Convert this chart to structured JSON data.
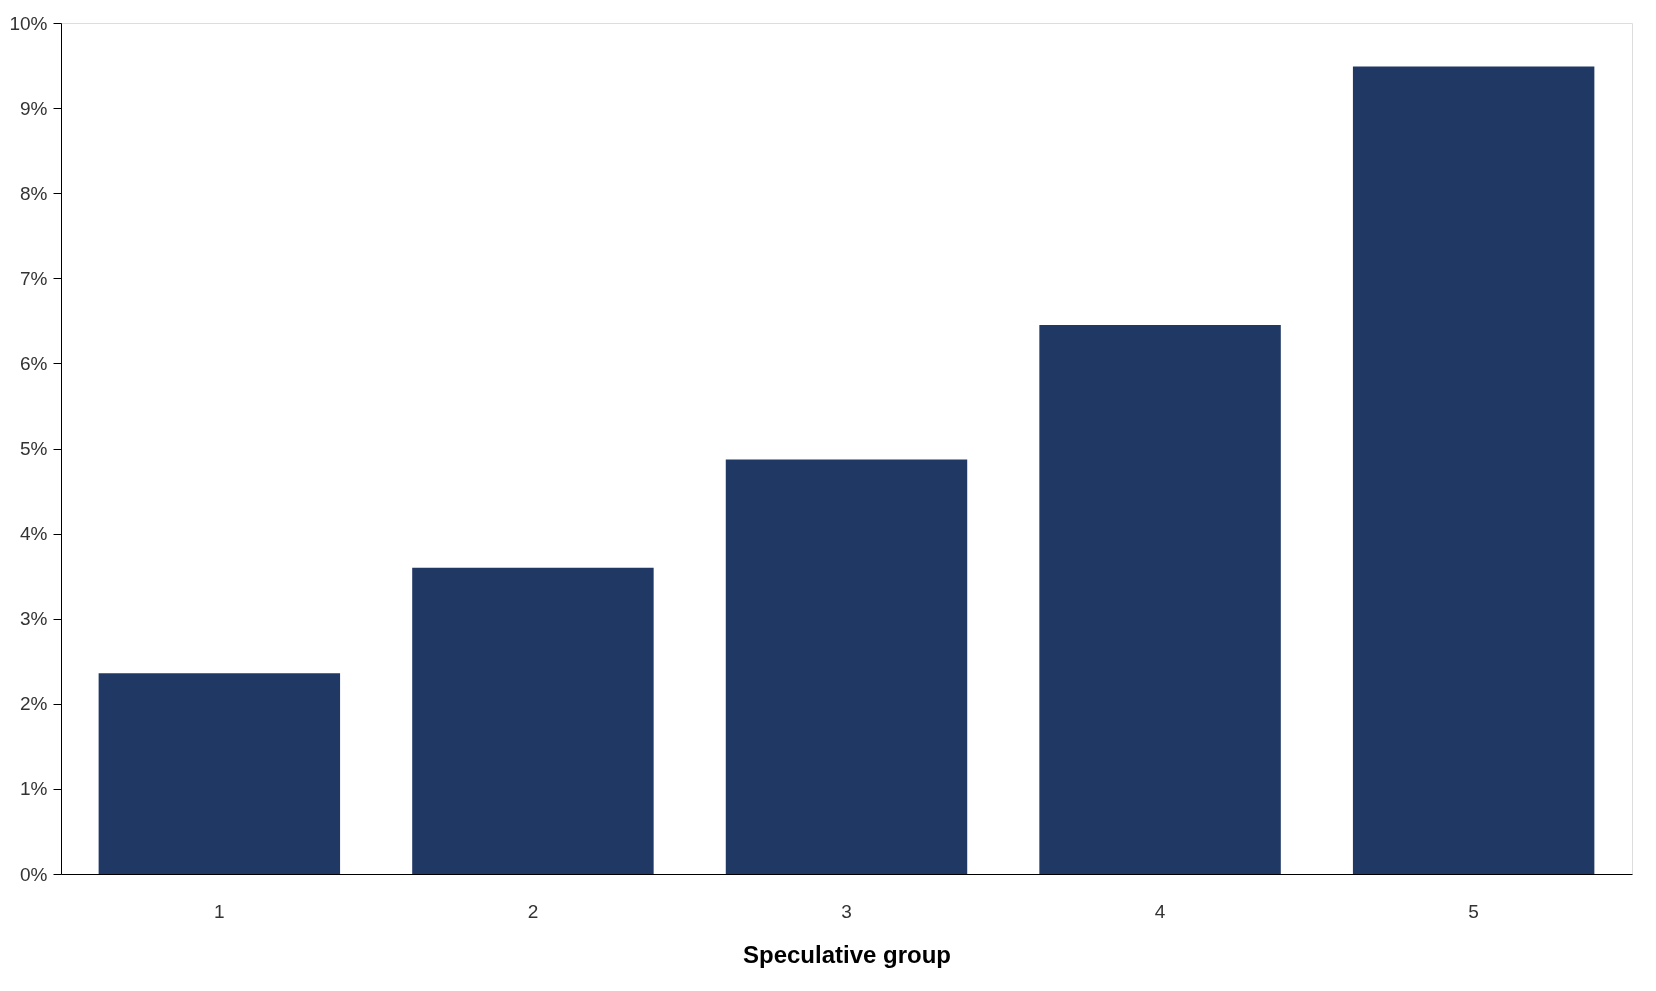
{
  "chart_data": {
    "type": "bar",
    "xlabel": "Speculative group",
    "categories": [
      "1",
      "2",
      "3",
      "4",
      "5"
    ],
    "values": [
      2.36,
      3.6,
      4.87,
      6.45,
      9.49
    ],
    "color": "#203864",
    "ylim": [
      0,
      10
    ],
    "yticks": [
      {
        "value": 0,
        "label": "0%"
      },
      {
        "value": 1,
        "label": "1%"
      },
      {
        "value": 2,
        "label": "2%"
      },
      {
        "value": 3,
        "label": "3%"
      },
      {
        "value": 4,
        "label": "4%"
      },
      {
        "value": 5,
        "label": "5%"
      },
      {
        "value": 6,
        "label": "6%"
      },
      {
        "value": 7,
        "label": "7%"
      },
      {
        "value": 8,
        "label": "8%"
      },
      {
        "value": 9,
        "label": "9%"
      },
      {
        "value": 10,
        "label": "10%"
      }
    ],
    "grid": false
  }
}
